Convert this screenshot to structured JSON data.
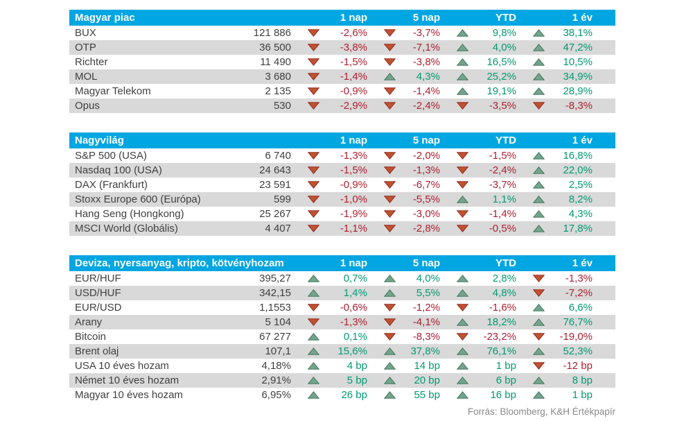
{
  "colors": {
    "header_bg": "#00a6e1",
    "header_text": "#ffffff",
    "row_alt_bg": "#d9d9d9",
    "up_text": "#009a72",
    "down_text": "#b01e2f",
    "up_fill": "#75a38b",
    "up_stroke": "#41785f",
    "down_fill": "#c05231",
    "down_stroke": "#93291c",
    "body_text": "#3f3f3f",
    "footer_text": "#8a8a8a"
  },
  "columns": [
    "1 nap",
    "5 nap",
    "YTD",
    "1 év"
  ],
  "sections": [
    {
      "title": "Magyar piac",
      "rows": [
        {
          "name": "BUX",
          "value": "121 886",
          "changes": [
            {
              "dir": "down",
              "text": "-2,6%"
            },
            {
              "dir": "down",
              "text": "-3,7%"
            },
            {
              "dir": "up",
              "text": "9,8%"
            },
            {
              "dir": "up",
              "text": "38,1%"
            }
          ]
        },
        {
          "name": "OTP",
          "value": "36 500",
          "changes": [
            {
              "dir": "down",
              "text": "-3,8%"
            },
            {
              "dir": "down",
              "text": "-7,1%"
            },
            {
              "dir": "up",
              "text": "4,0%"
            },
            {
              "dir": "up",
              "text": "47,2%"
            }
          ]
        },
        {
          "name": "Richter",
          "value": "11 490",
          "changes": [
            {
              "dir": "down",
              "text": "-1,5%"
            },
            {
              "dir": "down",
              "text": "-3,8%"
            },
            {
              "dir": "up",
              "text": "16,5%"
            },
            {
              "dir": "up",
              "text": "10,5%"
            }
          ]
        },
        {
          "name": "MOL",
          "value": "3 680",
          "changes": [
            {
              "dir": "down",
              "text": "-1,4%"
            },
            {
              "dir": "up",
              "text": "4,3%"
            },
            {
              "dir": "up",
              "text": "25,2%"
            },
            {
              "dir": "up",
              "text": "34,9%"
            }
          ]
        },
        {
          "name": "Magyar Telekom",
          "value": "2 135",
          "changes": [
            {
              "dir": "down",
              "text": "-0,9%"
            },
            {
              "dir": "down",
              "text": "-1,4%"
            },
            {
              "dir": "up",
              "text": "19,1%"
            },
            {
              "dir": "up",
              "text": "28,9%"
            }
          ]
        },
        {
          "name": "Opus",
          "value": "530",
          "changes": [
            {
              "dir": "down",
              "text": "-2,9%"
            },
            {
              "dir": "down",
              "text": "-2,4%"
            },
            {
              "dir": "down",
              "text": "-3,5%"
            },
            {
              "dir": "down",
              "text": "-8,3%"
            }
          ]
        }
      ]
    },
    {
      "title": "Nagyvilág",
      "rows": [
        {
          "name": "S&P 500 (USA)",
          "value": "6 740",
          "changes": [
            {
              "dir": "down",
              "text": "-1,3%"
            },
            {
              "dir": "down",
              "text": "-2,0%"
            },
            {
              "dir": "down",
              "text": "-1,5%"
            },
            {
              "dir": "up",
              "text": "16,8%"
            }
          ]
        },
        {
          "name": "Nasdaq 100 (USA)",
          "value": "24 643",
          "changes": [
            {
              "dir": "down",
              "text": "-1,5%"
            },
            {
              "dir": "down",
              "text": "-1,3%"
            },
            {
              "dir": "down",
              "text": "-2,4%"
            },
            {
              "dir": "up",
              "text": "22,0%"
            }
          ]
        },
        {
          "name": "DAX (Frankfurt)",
          "value": "23 591",
          "changes": [
            {
              "dir": "down",
              "text": "-0,9%"
            },
            {
              "dir": "down",
              "text": "-6,7%"
            },
            {
              "dir": "down",
              "text": "-3,7%"
            },
            {
              "dir": "up",
              "text": "2,5%"
            }
          ]
        },
        {
          "name": "Stoxx Europe 600 (Európa)",
          "value": "599",
          "changes": [
            {
              "dir": "down",
              "text": "-1,0%"
            },
            {
              "dir": "down",
              "text": "-5,5%"
            },
            {
              "dir": "up",
              "text": "1,1%"
            },
            {
              "dir": "up",
              "text": "8,2%"
            }
          ]
        },
        {
          "name": "Hang Seng (Hongkong)",
          "value": "25 267",
          "changes": [
            {
              "dir": "down",
              "text": "-1,9%"
            },
            {
              "dir": "down",
              "text": "-3,0%"
            },
            {
              "dir": "down",
              "text": "-1,4%"
            },
            {
              "dir": "up",
              "text": "4,3%"
            }
          ]
        },
        {
          "name": "MSCI World (Globális)",
          "value": "4 407",
          "changes": [
            {
              "dir": "down",
              "text": "-1,1%"
            },
            {
              "dir": "down",
              "text": "-2,8%"
            },
            {
              "dir": "down",
              "text": "-0,5%"
            },
            {
              "dir": "up",
              "text": "17,8%"
            }
          ]
        }
      ]
    },
    {
      "title": "Deviza, nyersanyag, kripto, kötvényhozam",
      "rows": [
        {
          "name": "EUR/HUF",
          "value": "395,27",
          "changes": [
            {
              "dir": "up",
              "text": "0,7%"
            },
            {
              "dir": "up",
              "text": "4,0%"
            },
            {
              "dir": "up",
              "text": "2,8%"
            },
            {
              "dir": "down",
              "text": "-1,3%"
            }
          ]
        },
        {
          "name": "USD/HUF",
          "value": "342,15",
          "changes": [
            {
              "dir": "up",
              "text": "1,4%"
            },
            {
              "dir": "up",
              "text": "5,5%"
            },
            {
              "dir": "up",
              "text": "4,8%"
            },
            {
              "dir": "down",
              "text": "-7,2%"
            }
          ]
        },
        {
          "name": "EUR/USD",
          "value": "1,1553",
          "changes": [
            {
              "dir": "down",
              "text": "-0,6%"
            },
            {
              "dir": "down",
              "text": "-1,2%"
            },
            {
              "dir": "down",
              "text": "-1,6%"
            },
            {
              "dir": "up",
              "text": "6,6%"
            }
          ]
        },
        {
          "name": "Arany",
          "value": "5 104",
          "changes": [
            {
              "dir": "down",
              "text": "-1,3%"
            },
            {
              "dir": "down",
              "text": "-4,1%"
            },
            {
              "dir": "up",
              "text": "18,2%"
            },
            {
              "dir": "up",
              "text": "76,7%"
            }
          ]
        },
        {
          "name": "Bitcoin",
          "value": "67 277",
          "changes": [
            {
              "dir": "up",
              "text": "0,1%"
            },
            {
              "dir": "down",
              "text": "-8,3%"
            },
            {
              "dir": "down",
              "text": "-23,2%"
            },
            {
              "dir": "down",
              "text": "-19,0%"
            }
          ]
        },
        {
          "name": "Brent olaj",
          "value": "107,1",
          "changes": [
            {
              "dir": "up",
              "text": "15,6%"
            },
            {
              "dir": "up",
              "text": "37,8%"
            },
            {
              "dir": "up",
              "text": "76,1%"
            },
            {
              "dir": "up",
              "text": "52,3%"
            }
          ]
        },
        {
          "name": "USA 10 éves hozam",
          "value": "4,18%",
          "changes": [
            {
              "dir": "up",
              "text": "4 bp"
            },
            {
              "dir": "up",
              "text": "14 bp"
            },
            {
              "dir": "up",
              "text": "1 bp"
            },
            {
              "dir": "down",
              "text": "-12 bp"
            }
          ]
        },
        {
          "name": "Német 10 éves hozam",
          "value": "2,91%",
          "changes": [
            {
              "dir": "up",
              "text": "5 bp"
            },
            {
              "dir": "up",
              "text": "20 bp"
            },
            {
              "dir": "up",
              "text": "6 bp"
            },
            {
              "dir": "up",
              "text": "8 bp"
            }
          ]
        },
        {
          "name": "Magyar 10 éves hozam",
          "value": "6,95%",
          "changes": [
            {
              "dir": "up",
              "text": "26 bp"
            },
            {
              "dir": "up",
              "text": "55 bp"
            },
            {
              "dir": "up",
              "text": "16 bp"
            },
            {
              "dir": "up",
              "text": "1 bp"
            }
          ]
        }
      ]
    }
  ],
  "footer": "Forrás: Bloomberg, K&H Értékpapír"
}
